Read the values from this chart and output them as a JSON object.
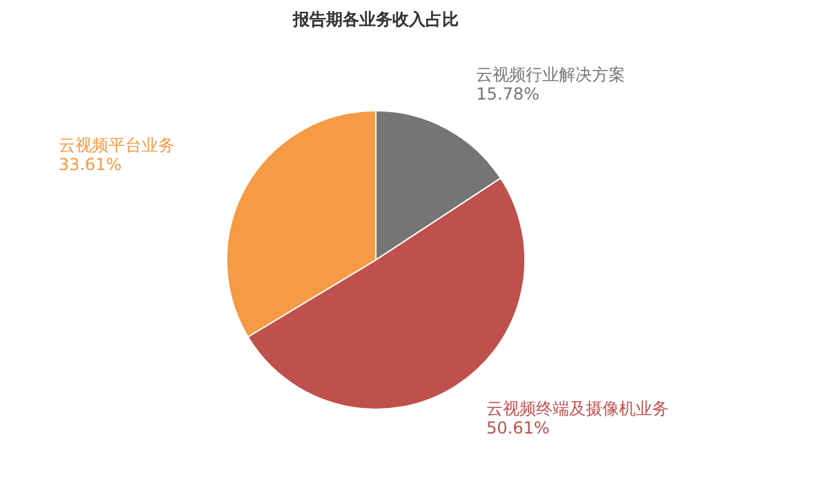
{
  "chart_data": {
    "type": "pie",
    "title": "报告期各业务收入占比",
    "categories": [
      "云视频行业解决方案",
      "云视频终端及摄像机业务",
      "云视频平台业务"
    ],
    "values": [
      15.78,
      50.61,
      33.61
    ],
    "colors": [
      "#757575",
      "#c0504d",
      "#f59a45"
    ],
    "value_labels": [
      "15.78%",
      "50.61%",
      "33.61%"
    ]
  }
}
